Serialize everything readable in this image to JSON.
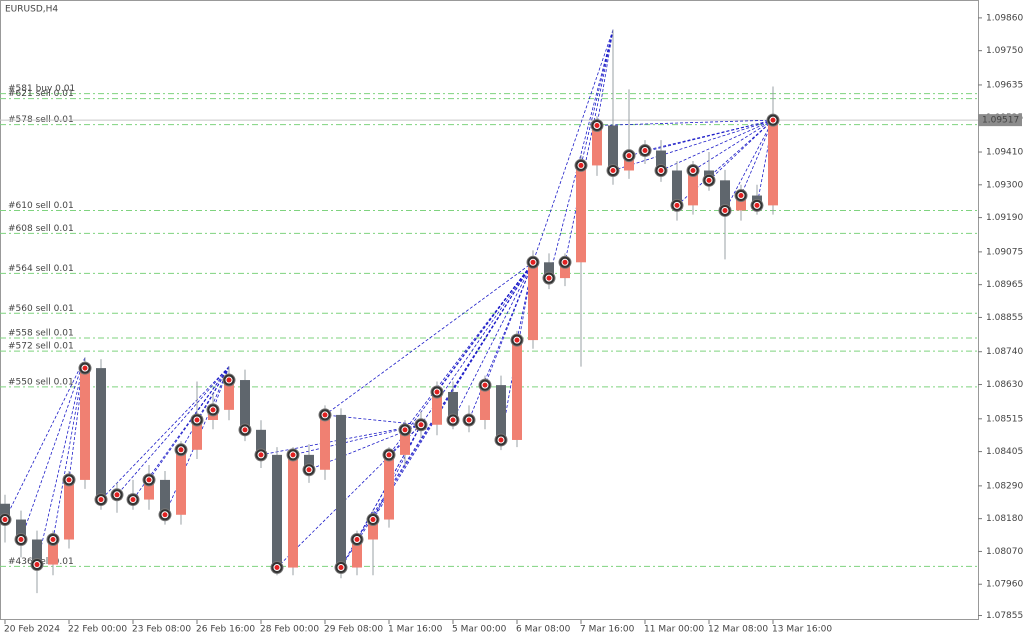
{
  "chart_data": {
    "type": "candlestick",
    "title": "EURUSD,H4",
    "categories": [
      "20 Feb 2024",
      null,
      null,
      null,
      "22 Feb 00:00",
      null,
      null,
      null,
      "23 Feb 08:00",
      null,
      null,
      null,
      "26 Feb 16:00",
      null,
      null,
      null,
      "28 Feb 00:00",
      null,
      null,
      null,
      "29 Feb 08:00",
      null,
      null,
      null,
      "1 Mar 16:00",
      null,
      null,
      null,
      "5 Mar 00:00",
      null,
      null,
      null,
      "6 Mar 08:00",
      null,
      null,
      null,
      "7 Mar 16:00",
      null,
      null,
      null,
      "11 Mar 00:00",
      null,
      null,
      null,
      "12 Mar 08:00",
      null,
      null,
      null,
      "13 Mar 16:00"
    ],
    "open": [
      1.0823,
      1.08177,
      1.0811,
      1.08026,
      1.0811,
      1.0831,
      1.08685,
      1.08244,
      1.0826,
      1.08244,
      1.0831,
      1.08193,
      1.08411,
      1.08511,
      1.08545,
      1.08645,
      1.08478,
      1.08394,
      1.08016,
      1.08394,
      1.08344,
      1.08528,
      1.08016,
      1.0811,
      1.08177,
      1.08394,
      1.08478,
      1.08495,
      1.08605,
      1.08511,
      1.08511,
      1.08628,
      1.08444,
      1.08779,
      1.0904,
      1.08987,
      1.0904,
      1.09365,
      1.09499,
      1.09348,
      1.09398,
      1.09415,
      1.09348,
      1.09231,
      1.09348,
      1.09315,
      1.09214,
      1.09264,
      1.09231
    ],
    "high": [
      1.0826,
      1.08207,
      1.0814,
      1.0814,
      1.0834,
      1.0872,
      1.08715,
      1.083,
      1.0831,
      1.0836,
      1.0834,
      1.0844,
      1.0864,
      1.086,
      1.0869,
      1.0868,
      1.0851,
      1.0842,
      1.0842,
      1.0843,
      1.0856,
      1.0855,
      1.0814,
      1.0821,
      1.0842,
      1.0851,
      1.0854,
      1.0864,
      1.0864,
      1.0856,
      1.0866,
      1.0866,
      1.0881,
      1.0908,
      1.0907,
      1.0907,
      1.094,
      1.0953,
      1.0982,
      1.0962,
      1.0945,
      1.0945,
      1.0938,
      1.0938,
      1.0941,
      1.0935,
      1.093,
      1.093,
      1.0963
    ],
    "low": [
      1.081,
      1.0805,
      1.0793,
      1.0799,
      1.0808,
      1.0828,
      1.0821,
      1.082,
      1.0821,
      1.0821,
      1.0816,
      1.0816,
      1.0838,
      1.0848,
      1.0851,
      1.0844,
      1.0835,
      1.0799,
      1.0799,
      1.083,
      1.0831,
      1.0798,
      1.0799,
      1.0799,
      1.0815,
      1.0836,
      1.0845,
      1.0846,
      1.0848,
      1.0847,
      1.0848,
      1.0841,
      1.0842,
      1.0875,
      1.0895,
      1.0896,
      1.0869,
      1.0933,
      1.093,
      1.0932,
      1.0937,
      1.0931,
      1.0918,
      1.092,
      1.0928,
      1.0905,
      1.0918,
      1.092,
      1.092
    ],
    "close": [
      1.08177,
      1.0811,
      1.08026,
      1.0811,
      1.0831,
      1.08685,
      1.08244,
      1.0826,
      1.08244,
      1.0831,
      1.08193,
      1.08411,
      1.08511,
      1.08545,
      1.08645,
      1.08478,
      1.08394,
      1.08016,
      1.08394,
      1.08344,
      1.08528,
      1.08016,
      1.0811,
      1.08177,
      1.08394,
      1.08478,
      1.08495,
      1.08605,
      1.08511,
      1.08511,
      1.08628,
      1.08444,
      1.08779,
      1.0904,
      1.08987,
      1.0904,
      1.09365,
      1.09499,
      1.09348,
      1.09398,
      1.09415,
      1.09348,
      1.09231,
      1.09348,
      1.09315,
      1.09214,
      1.09264,
      1.09231,
      1.09517
    ],
    "up_color": "#f08072",
    "down_color": "#5f666d",
    "last_price": 1.09517,
    "orders": [
      {
        "label": "#581 buy 0.01",
        "price": 1.09606
      },
      {
        "label": "#621 sell 0.01",
        "price": 1.09589
      },
      {
        "label": "#578 sell 0.01",
        "price": 1.09502
      },
      {
        "label": "#610 sell 0.01",
        "price": 1.09214
      },
      {
        "label": "#608 sell 0.01",
        "price": 1.09137
      },
      {
        "label": "#564 sell 0.01",
        "price": 1.09003
      },
      {
        "label": "#560 sell 0.01",
        "price": 1.08869
      },
      {
        "label": "#558 sell 0.01",
        "price": 1.08786
      },
      {
        "label": "#572 sell 0.01",
        "price": 1.08742
      },
      {
        "label": "#550 sell 0.01",
        "price": 1.08622
      },
      {
        "label": "#436 sell 0.01",
        "price": 1.0802
      }
    ],
    "ylim": [
      1.0784,
      1.0992
    ],
    "yticks": [
      {
        "value": 1.0986,
        "label": "1.09860"
      },
      {
        "value": 1.0975,
        "label": "1.09750"
      },
      1.09635,
      1.09525,
      {
        "value": 1.0941,
        "label": "1.09410"
      },
      {
        "value": 1.093,
        "label": "1.09300"
      },
      {
        "value": 1.0919,
        "label": "1.09190"
      },
      1.09075,
      1.08965,
      1.08855,
      {
        "value": 1.0874,
        "label": "1.08740"
      },
      {
        "value": 1.0863,
        "label": "1.08630"
      },
      1.08515,
      1.08405,
      {
        "value": 1.0829,
        "label": "1.08290"
      },
      {
        "value": 1.0818,
        "label": "1.08180"
      },
      {
        "value": 1.0807,
        "label": "1.08070"
      },
      {
        "value": 1.0796,
        "label": "1.07960"
      },
      1.07855
    ]
  }
}
